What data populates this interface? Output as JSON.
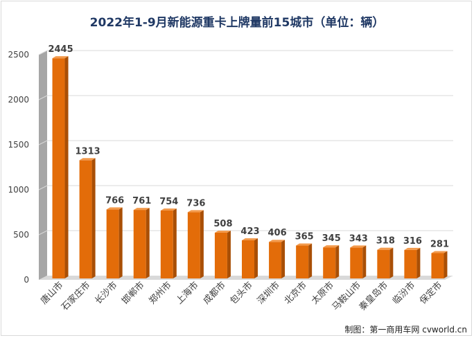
{
  "chart_data": {
    "type": "bar",
    "title": "2022年1-9月新能源重卡上牌量前15城市（单位：辆）",
    "categories": [
      "唐山市",
      "石家庄市",
      "长沙市",
      "邯郸市",
      "郑州市",
      "上海市",
      "成都市",
      "包头市",
      "深圳市",
      "北京市",
      "太原市",
      "马鞍山市",
      "秦皇岛市",
      "临汾市",
      "保定市"
    ],
    "values": [
      2445,
      1313,
      766,
      761,
      754,
      736,
      508,
      423,
      406,
      365,
      345,
      343,
      318,
      316,
      281
    ],
    "ylim": [
      0,
      2500
    ],
    "yticks": [
      0,
      500,
      1000,
      1500,
      2000,
      2500
    ],
    "xlabel": "",
    "ylabel": "",
    "grid": true,
    "bar_color": "#e36c09",
    "bar_side_color": "#a94f06",
    "bar_top_color": "#f39a4c",
    "wall_color": "#a6a6a6"
  },
  "source_note": "制图：第一商用车网 cvworld.cn"
}
